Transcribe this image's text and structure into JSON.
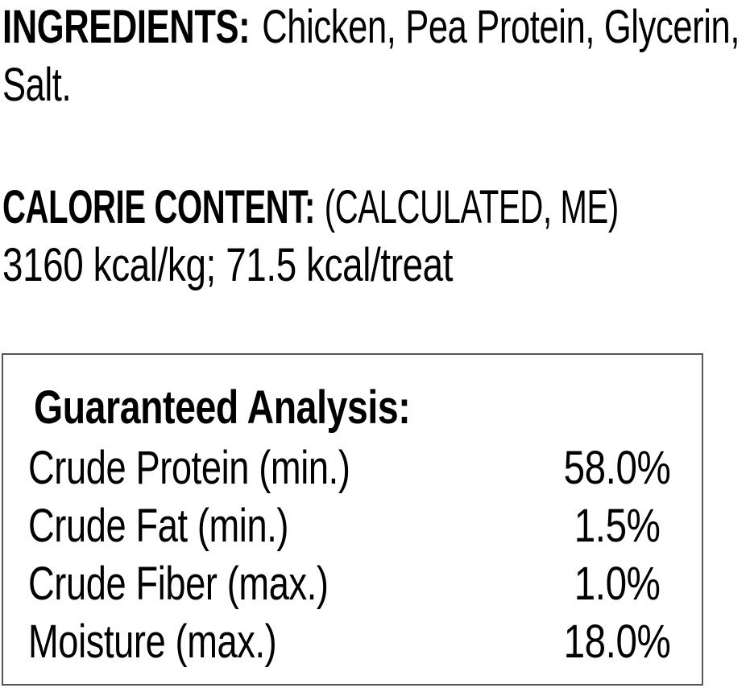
{
  "ingredients": {
    "label": "INGREDIENTS:",
    "line1_rest": "Chicken, Pea Protein, Glycerin,",
    "line2": "Salt."
  },
  "calorie": {
    "label": "CALORIE CONTENT:",
    "line1_rest": "(CALCULATED, ME)",
    "line2": "3160 kcal/kg; 71.5 kcal/treat"
  },
  "guaranteed_analysis": {
    "title": "Guaranteed Analysis:",
    "rows": [
      {
        "label": "Crude Protein (min.)",
        "value": "58.0%"
      },
      {
        "label": "Crude Fat (min.)",
        "value": "1.5%"
      },
      {
        "label": "Crude Fiber (max.)",
        "value": "1.0%"
      },
      {
        "label": "Moisture (max.)",
        "value": "18.0%"
      }
    ]
  },
  "colors": {
    "text": "#000000",
    "background": "#ffffff",
    "box_border": "#555555"
  }
}
